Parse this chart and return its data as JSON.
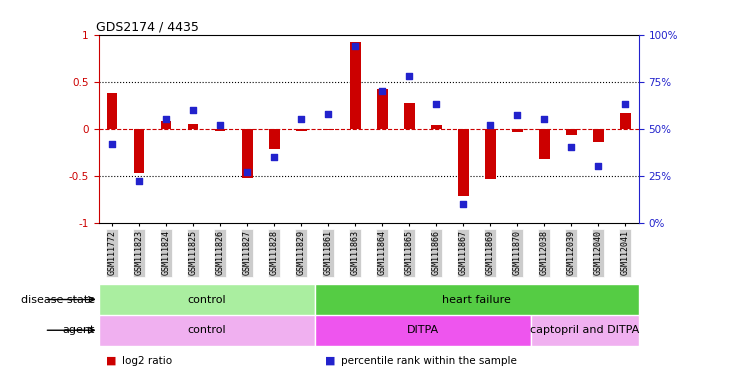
{
  "title": "GDS2174 / 4435",
  "samples": [
    "GSM111772",
    "GSM111823",
    "GSM111824",
    "GSM111825",
    "GSM111826",
    "GSM111827",
    "GSM111828",
    "GSM111829",
    "GSM111861",
    "GSM111863",
    "GSM111864",
    "GSM111865",
    "GSM111866",
    "GSM111867",
    "GSM111869",
    "GSM111870",
    "GSM112038",
    "GSM112039",
    "GSM112040",
    "GSM112041"
  ],
  "log2_ratio": [
    0.38,
    -0.47,
    0.08,
    0.05,
    -0.02,
    -0.52,
    -0.22,
    -0.02,
    -0.01,
    0.92,
    0.42,
    0.27,
    0.04,
    -0.72,
    -0.53,
    -0.04,
    -0.32,
    -0.07,
    -0.14,
    0.17
  ],
  "percentile_rank": [
    42,
    22,
    55,
    60,
    52,
    27,
    35,
    55,
    58,
    94,
    70,
    78,
    63,
    10,
    52,
    57,
    55,
    40,
    30,
    63
  ],
  "bar_color": "#cc0000",
  "dot_color": "#2222cc",
  "ylim_left": [
    -1,
    1
  ],
  "ylim_right": [
    0,
    100
  ],
  "yticks_left": [
    -1,
    -0.5,
    0,
    0.5,
    1
  ],
  "yticks_right": [
    0,
    25,
    50,
    75,
    100
  ],
  "ytick_labels_left": [
    "-1",
    "-0.5",
    "0",
    "0.5",
    "1"
  ],
  "ytick_labels_right": [
    "0%",
    "25%",
    "50%",
    "75%",
    "100%"
  ],
  "disease_state_groups": [
    {
      "label": "control",
      "start": 0,
      "end": 8,
      "color": "#aaeea0"
    },
    {
      "label": "heart failure",
      "start": 8,
      "end": 20,
      "color": "#55cc44"
    }
  ],
  "agent_groups": [
    {
      "label": "control",
      "start": 0,
      "end": 8,
      "color": "#f0b0f0"
    },
    {
      "label": "DITPA",
      "start": 8,
      "end": 16,
      "color": "#ee55ee"
    },
    {
      "label": "captopril and DITPA",
      "start": 16,
      "end": 20,
      "color": "#f0b0f0"
    }
  ],
  "legend_items": [
    {
      "label": "log2 ratio",
      "color": "#cc0000"
    },
    {
      "label": "percentile rank within the sample",
      "color": "#2222cc"
    }
  ],
  "label_disease_state": "disease state",
  "label_agent": "agent",
  "bg_xtick_color": "#cccccc"
}
